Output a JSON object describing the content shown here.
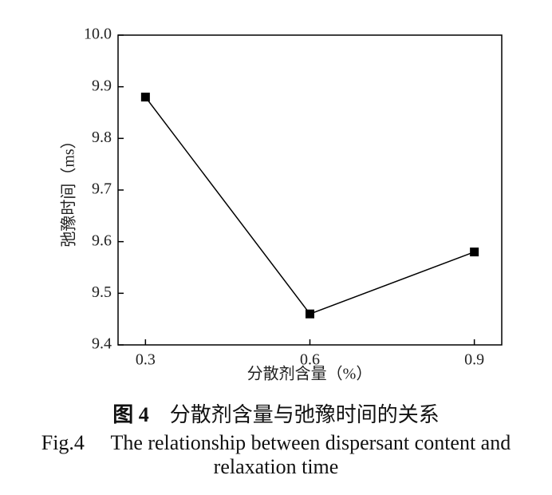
{
  "chart_data": {
    "type": "line",
    "x_label": "分散剂含量（%）",
    "y_label": "弛豫时间（ms）",
    "x": [
      0.3,
      0.6,
      0.9
    ],
    "series": [
      {
        "color": "#000000",
        "values": [
          9.88,
          9.46,
          9.58
        ]
      }
    ],
    "xlim": [
      0.25,
      0.95
    ],
    "xticks": [
      0.3,
      0.6,
      0.9
    ],
    "ylim": [
      9.4,
      10.0
    ],
    "yticks": [
      9.4,
      9.5,
      9.6,
      9.7,
      9.8,
      9.9,
      {
        "value": 10.0,
        "label": "10.0"
      }
    ],
    "grid": false
  },
  "caption_cn": {
    "label": "图 4",
    "text": "分散剂含量与弛豫时间的关系"
  },
  "caption_en": {
    "label": "Fig.4",
    "text": "The relationship between dispersant content and relaxation time"
  }
}
